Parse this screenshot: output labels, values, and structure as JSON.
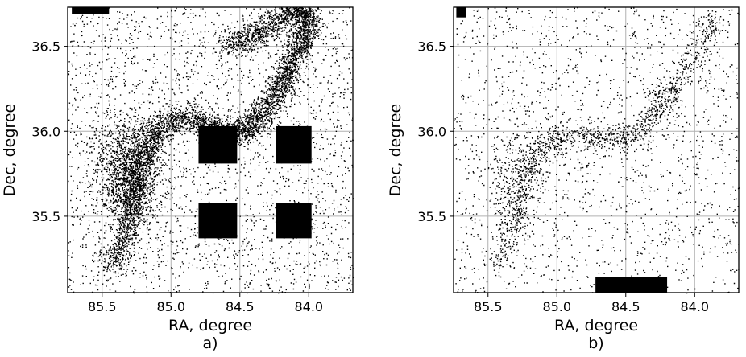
{
  "chart_data": [
    {
      "type": "scatter",
      "panel_label": "a)",
      "xlabel": "RA, degree",
      "ylabel": "Dec, degree",
      "xlim": [
        85.75,
        83.68
      ],
      "ylim": [
        35.05,
        36.73
      ],
      "x_ticks": [
        85.5,
        85.0,
        84.5,
        84.0
      ],
      "x_tick_labels": [
        "85.5",
        "85.0",
        "84.5",
        "84.0"
      ],
      "y_ticks": [
        35.5,
        36.0,
        36.5
      ],
      "y_tick_labels": [
        "35.5",
        "36.0",
        "36.5"
      ],
      "grid": true,
      "point_color": "#000000",
      "background_points": 2600,
      "arc": {
        "ra": [
          85.45,
          85.35,
          85.3,
          85.28,
          85.22,
          85.15,
          85.05,
          84.9,
          84.75,
          84.62,
          84.5,
          84.4,
          84.3,
          84.22,
          84.15,
          84.1,
          84.05,
          84.0,
          84.05,
          84.15,
          84.3,
          84.45,
          84.6
        ],
        "dec": [
          35.2,
          35.35,
          35.5,
          35.65,
          35.8,
          35.95,
          36.05,
          36.08,
          36.05,
          36.0,
          35.98,
          36.05,
          36.15,
          36.25,
          36.35,
          36.45,
          36.55,
          36.65,
          36.72,
          36.7,
          36.62,
          36.55,
          36.5
        ],
        "points": 5200
      },
      "blobs": [
        {
          "ra": 85.35,
          "dec": 35.8,
          "sigma_ra": 0.12,
          "sigma_dec": 0.16,
          "points": 900
        },
        {
          "ra": 85.25,
          "dec": 35.7,
          "sigma_ra": 0.1,
          "sigma_dec": 0.14,
          "points": 600
        }
      ],
      "dense_regions": [
        {
          "ra": [
            84.8,
            84.52
          ],
          "dec": [
            35.81,
            36.03
          ]
        },
        {
          "ra": [
            84.24,
            83.98
          ],
          "dec": [
            35.81,
            36.03
          ]
        },
        {
          "ra": [
            84.8,
            84.52
          ],
          "dec": [
            35.37,
            35.58
          ]
        },
        {
          "ra": [
            84.24,
            83.98
          ],
          "dec": [
            35.37,
            35.58
          ]
        },
        {
          "ra": [
            85.72,
            85.45
          ],
          "dec": [
            36.69,
            36.73
          ]
        }
      ]
    },
    {
      "type": "scatter",
      "panel_label": "b)",
      "xlabel": "RA, degree",
      "ylabel": "Dec, degree",
      "xlim": [
        85.75,
        83.68
      ],
      "ylim": [
        35.05,
        36.73
      ],
      "x_ticks": [
        85.5,
        85.0,
        84.5,
        84.0
      ],
      "x_tick_labels": [
        "85.5",
        "85.0",
        "84.5",
        "84.0"
      ],
      "y_ticks": [
        35.5,
        36.0,
        36.5
      ],
      "y_tick_labels": [
        "35.5",
        "36.0",
        "36.5"
      ],
      "grid": true,
      "point_color": "#000000",
      "background_points": 1700,
      "arc": {
        "ra": [
          85.45,
          85.35,
          85.3,
          85.25,
          85.2,
          85.12,
          85.0,
          84.85,
          84.7,
          84.55,
          84.45,
          84.35,
          84.25,
          84.15,
          84.05,
          83.95,
          83.85
        ],
        "dec": [
          35.2,
          35.35,
          35.5,
          35.65,
          35.8,
          35.9,
          35.95,
          35.98,
          35.97,
          35.95,
          35.98,
          36.05,
          36.15,
          36.25,
          36.4,
          36.55,
          36.68
        ],
        "points": 1200
      },
      "blobs": [
        {
          "ra": 85.3,
          "dec": 35.75,
          "sigma_ra": 0.12,
          "sigma_dec": 0.16,
          "points": 350
        },
        {
          "ra": 84.25,
          "dec": 36.2,
          "sigma_ra": 0.06,
          "sigma_dec": 0.06,
          "points": 80
        }
      ],
      "dense_regions": [
        {
          "ra": [
            84.72,
            84.2
          ],
          "dec": [
            35.05,
            35.14
          ]
        },
        {
          "ra": [
            85.73,
            85.66
          ],
          "dec": [
            36.67,
            36.73
          ]
        }
      ]
    }
  ]
}
